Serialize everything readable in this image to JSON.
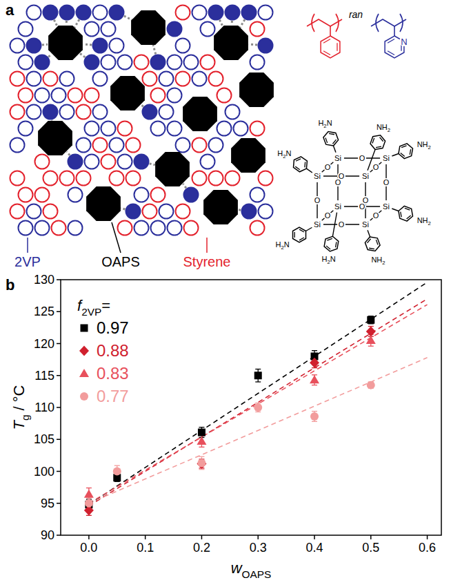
{
  "diagram": {
    "panel_label": "a",
    "labels": [
      {
        "text": "2VP",
        "color": "#2b2f9c"
      },
      {
        "text": "OAPS",
        "color": "#000000"
      },
      {
        "text": "Styrene",
        "color": "#e3222d"
      }
    ],
    "copolymer": {
      "tag": "ran",
      "heteroatom": "N"
    },
    "cage": {
      "silicon": "Si",
      "oxygen": "O",
      "amine_left": {
        "pre": "H",
        "sub": "2",
        "post": "N"
      },
      "amine_right": {
        "pre": "NH",
        "sub": "2"
      }
    }
  },
  "chart_data": {
    "type": "scatter",
    "panel_label": "b",
    "x_label": {
      "base": "w",
      "sub": "OAPS"
    },
    "y_label": {
      "base": "T",
      "sub": "g",
      "suffix": " / °C"
    },
    "legend_title": {
      "base": "f",
      "sub": "2VP",
      "suffix": "="
    },
    "legend": "top-left",
    "grid": false,
    "xlim": [
      -0.05,
      0.625
    ],
    "xticks": [
      {
        "value": 0,
        "label": "0.0"
      },
      {
        "value": 0.1,
        "label": "0.1"
      },
      {
        "value": 0.2,
        "label": "0.2"
      },
      {
        "value": 0.3,
        "label": "0.3"
      },
      {
        "value": 0.4,
        "label": "0.4"
      },
      {
        "value": 0.5,
        "label": "0.5"
      },
      {
        "value": 0.6,
        "label": "0.6"
      }
    ],
    "ylim": [
      90,
      130
    ],
    "yticks": [
      90,
      95,
      100,
      105,
      110,
      115,
      120,
      125,
      130
    ],
    "series": [
      {
        "name": "0.97",
        "color": "#000000",
        "marker": "square",
        "line_style": "dashed",
        "x": [
          0,
          0.05,
          0.2,
          0.3,
          0.4,
          0.5
        ],
        "values": [
          94.8,
          99,
          106.1,
          115,
          118,
          123.7
        ],
        "errors": [
          0.8,
          0.6,
          0.8,
          1,
          0.9,
          0.6
        ],
        "fit_x": [
          0,
          0.6
        ],
        "fit_values": [
          94.8,
          129.6
        ]
      },
      {
        "name": "0.88",
        "color": "#d0202e",
        "marker": "diamond",
        "line_style": "dashed",
        "x": [
          0,
          0.2,
          0.4,
          0.5
        ],
        "values": [
          93.9,
          101.2,
          117,
          121.9
        ],
        "errors": [
          0.8,
          0.7,
          0.8,
          0.8
        ],
        "fit_x": [
          0,
          0.6
        ],
        "fit_values": [
          94.6,
          127
        ]
      },
      {
        "name": "0.83",
        "color": "#e8505c",
        "marker": "triangle",
        "line_style": "dashed",
        "x": [
          0,
          0.2,
          0.4,
          0.5
        ],
        "values": [
          96.4,
          104.7,
          114.3,
          120.5
        ],
        "errors": [
          1,
          0.9,
          0.8,
          0.9
        ],
        "fit_x": [
          0,
          0.6
        ],
        "fit_values": [
          95,
          126.1
        ]
      },
      {
        "name": "0.77",
        "color": "#f29c9c",
        "marker": "circle",
        "line_style": "dashed",
        "x": [
          0,
          0.05,
          0.2,
          0.3,
          0.4,
          0.5
        ],
        "values": [
          95,
          100,
          101.3,
          110,
          108.6,
          113.5
        ],
        "errors": [
          0.8,
          0.9,
          1,
          0.7,
          0.8,
          0.5
        ],
        "fit_x": [
          0,
          0.6
        ],
        "fit_values": [
          95,
          117.8
        ]
      }
    ]
  }
}
